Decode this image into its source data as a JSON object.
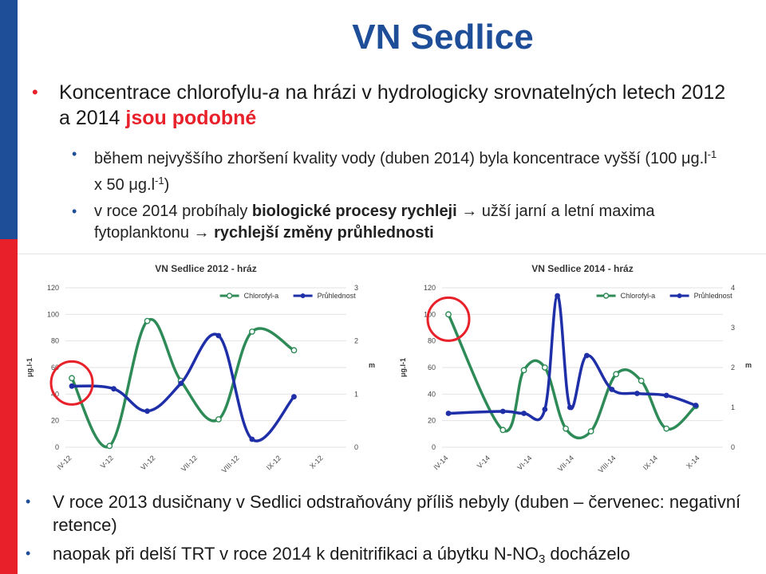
{
  "slide": {
    "title": "VN Sedlice",
    "bullet1": {
      "part1": "Koncentrace chlorofylu-",
      "italic": "a",
      "part2": " na hrázi v hydrologicky srovnatelných letech 2012 a 2014 ",
      "accent": "jsou podobné"
    },
    "sub1": {
      "text1": "během nejvyššího zhoršení kvality vody (duben 2014) byla koncentrace vyšší (100 μg.l",
      "sup1": "-1",
      "text2": " x 50 μg.l",
      "sup2": "-1",
      "text3": ")"
    },
    "sub2": {
      "text1": "v roce 2014 probíhaly ",
      "bold1": "biologické procesy rychleji",
      "text2": " → užší jarní a letní maxima fytoplanktonu → ",
      "bold2": "rychlejší změny průhlednosti"
    },
    "bottom1": "V roce 2013 dusičnany v Sedlici odstraňovány příliš nebyly (duben – červenec: negativní retence)",
    "bottom2": {
      "text1": "naopak při delší TRT v roce 2014 k denitrifikaci a úbytku N-NO",
      "sub": "3",
      "text2": " docházelo"
    }
  },
  "colors": {
    "title": "#1f4e99",
    "accent": "#e8202a",
    "chlorophyll": "#2e8b57",
    "transparency": "#1f2fa8",
    "highlight": "#e8202a"
  },
  "chart_data": [
    {
      "type": "line",
      "title": "VN Sedlice 2012 - hráz",
      "ylabel": "μg.l-1",
      "y2label": "m",
      "ylim": [
        0,
        120
      ],
      "y2lim": [
        0,
        3
      ],
      "yticks": [
        "0",
        "20",
        "40",
        "60",
        "80",
        "100",
        "120"
      ],
      "y2ticks": [
        "0",
        "1",
        "2",
        "3"
      ],
      "categories": [
        "IV-12",
        "V-12",
        "VI-12",
        "VII-12",
        "VIII-12",
        "IX-12",
        "X-12"
      ],
      "x": [
        0,
        1,
        2,
        3,
        4,
        5,
        6
      ],
      "series": [
        {
          "name": "Chlorofyl-a",
          "axis": "left",
          "x": [
            0,
            0.9,
            1.8,
            2.6,
            3.5,
            4.3,
            5.3
          ],
          "values": [
            52,
            1,
            95,
            50,
            21,
            87,
            73
          ]
        },
        {
          "name": "Průhlednost",
          "axis": "right",
          "x": [
            0,
            1.0,
            1.8,
            2.6,
            3.5,
            4.3,
            5.3
          ],
          "values": [
            1.15,
            1.1,
            0.68,
            1.2,
            2.1,
            0.15,
            0.95
          ]
        }
      ],
      "highlight_category": "IV-12"
    },
    {
      "type": "line",
      "title": "VN Sedlice 2014 - hráz",
      "ylabel": "μg.l-1",
      "y2label": "m",
      "ylim": [
        0,
        120
      ],
      "y2lim": [
        0,
        4
      ],
      "yticks": [
        "0",
        "20",
        "40",
        "60",
        "80",
        "100",
        "120"
      ],
      "y2ticks": [
        "0",
        "1",
        "2",
        "3",
        "4"
      ],
      "categories": [
        "IV-14",
        "V-14",
        "VI-14",
        "VII-14",
        "VIII-14",
        "IX-14",
        "X-14"
      ],
      "x": [
        0,
        1,
        2,
        3,
        4,
        5,
        6
      ],
      "series": [
        {
          "name": "Chlorofyl-a",
          "axis": "left",
          "x": [
            0,
            1.3,
            1.8,
            2.3,
            2.8,
            3.4,
            4.0,
            4.6,
            5.2,
            5.9
          ],
          "values": [
            100,
            13,
            58,
            60,
            14,
            12,
            55,
            50,
            14,
            31
          ]
        },
        {
          "name": "Průhlednost",
          "axis": "right",
          "x": [
            0,
            1.3,
            1.8,
            2.3,
            2.6,
            2.9,
            3.3,
            3.9,
            4.5,
            5.2,
            5.9
          ],
          "values": [
            0.85,
            0.9,
            0.85,
            0.95,
            3.8,
            1.0,
            2.3,
            1.45,
            1.35,
            1.3,
            1.05
          ]
        }
      ],
      "highlight_category": "IV-14"
    }
  ]
}
